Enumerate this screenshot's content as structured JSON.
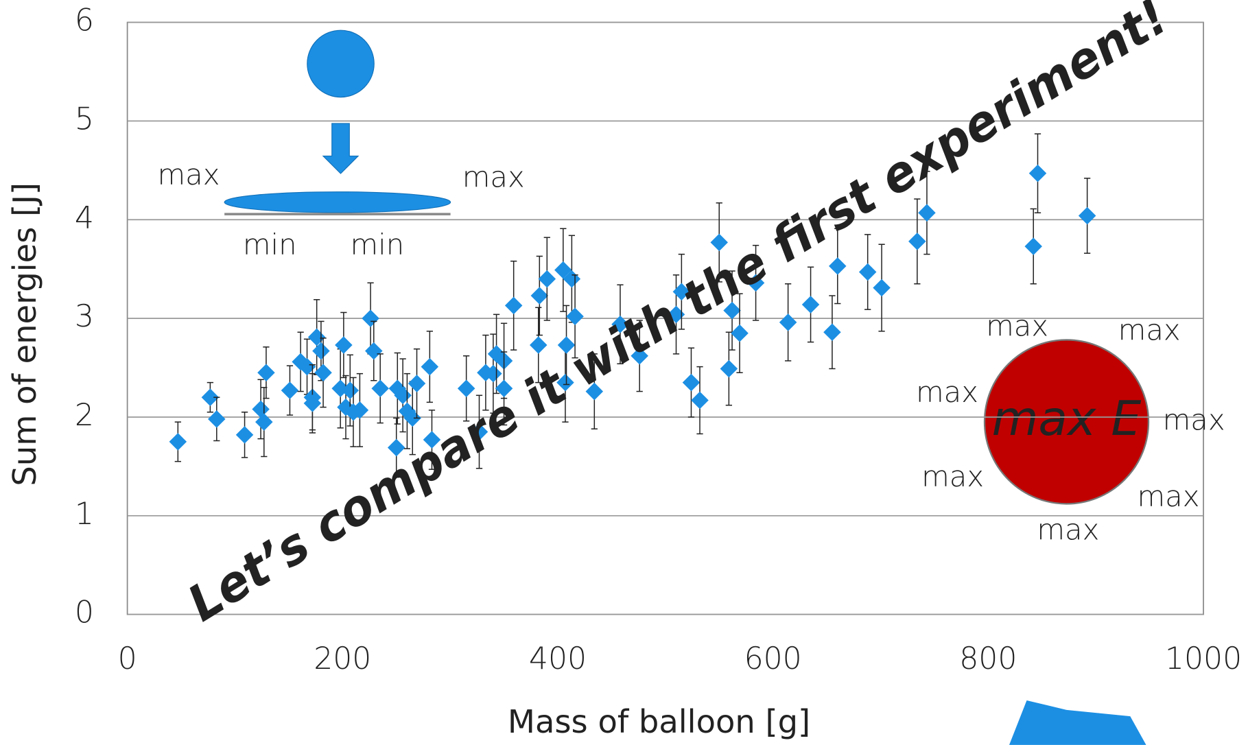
{
  "chart_data": {
    "type": "scatter",
    "x_label": "Mass of balloon [g]",
    "y_label": "Sum of energies [J]",
    "xlim": [
      0,
      1000
    ],
    "ylim": [
      0,
      6
    ],
    "xticks": [
      0,
      200,
      400,
      600,
      800,
      1000
    ],
    "yticks": [
      0,
      1,
      2,
      3,
      4,
      5,
      6
    ],
    "grid": true,
    "color": "#1c8fe3",
    "x": [
      47,
      77,
      83,
      109,
      124,
      127,
      129,
      151,
      161,
      167,
      172,
      172,
      176,
      180,
      182,
      198,
      201,
      203,
      207,
      210,
      216,
      226,
      229,
      235,
      250,
      251,
      256,
      260,
      265,
      269,
      281,
      283,
      315,
      327,
      333,
      340,
      343,
      350,
      350,
      359,
      382,
      383,
      390,
      405,
      407,
      408,
      413,
      416,
      434,
      458,
      476,
      510,
      515,
      524,
      532,
      550,
      559,
      562,
      569,
      584,
      614,
      635,
      655,
      660,
      688,
      701,
      734,
      743,
      842,
      846,
      892
    ],
    "values": [
      1.75,
      2.2,
      1.98,
      1.82,
      2.08,
      1.95,
      2.45,
      2.27,
      2.56,
      2.51,
      2.2,
      2.14,
      2.81,
      2.67,
      2.45,
      2.29,
      2.73,
      2.1,
      2.27,
      2.05,
      2.07,
      3.0,
      2.67,
      2.29,
      1.69,
      2.29,
      2.22,
      2.06,
      1.99,
      2.34,
      2.51,
      1.77,
      2.29,
      1.85,
      2.45,
      2.44,
      2.64,
      2.57,
      2.29,
      3.13,
      2.73,
      3.23,
      3.4,
      3.49,
      2.35,
      2.73,
      3.4,
      3.02,
      2.26,
      2.94,
      2.62,
      3.04,
      3.27,
      2.35,
      2.17,
      3.77,
      2.49,
      3.08,
      2.85,
      3.36,
      2.96,
      3.14,
      2.86,
      3.53,
      3.47,
      3.31,
      3.78,
      4.07,
      3.73,
      4.47,
      4.04
    ],
    "errors": [
      0.2,
      0.15,
      0.22,
      0.23,
      0.3,
      0.35,
      0.26,
      0.25,
      0.3,
      0.28,
      0.33,
      0.3,
      0.38,
      0.3,
      0.35,
      0.4,
      0.33,
      0.32,
      0.36,
      0.35,
      0.37,
      0.36,
      0.3,
      0.35,
      0.3,
      0.36,
      0.37,
      0.38,
      0.37,
      0.35,
      0.36,
      0.3,
      0.33,
      0.37,
      0.38,
      0.4,
      0.4,
      0.38,
      0.37,
      0.45,
      0.38,
      0.4,
      0.42,
      0.42,
      0.4,
      0.4,
      0.44,
      0.42,
      0.38,
      0.4,
      0.36,
      0.4,
      0.38,
      0.35,
      0.34,
      0.4,
      0.37,
      0.4,
      0.4,
      0.38,
      0.39,
      0.38,
      0.37,
      0.38,
      0.38,
      0.44,
      0.43,
      0.42,
      0.38,
      0.4,
      0.38
    ],
    "annotation": "Let’s compare it with the first experiment!",
    "diagram_labels": [
      "max",
      "max",
      "min",
      "min"
    ],
    "circle_label": "max E",
    "circle_labels": [
      "max",
      "max",
      "max",
      "max",
      "max",
      "max",
      "max"
    ]
  }
}
